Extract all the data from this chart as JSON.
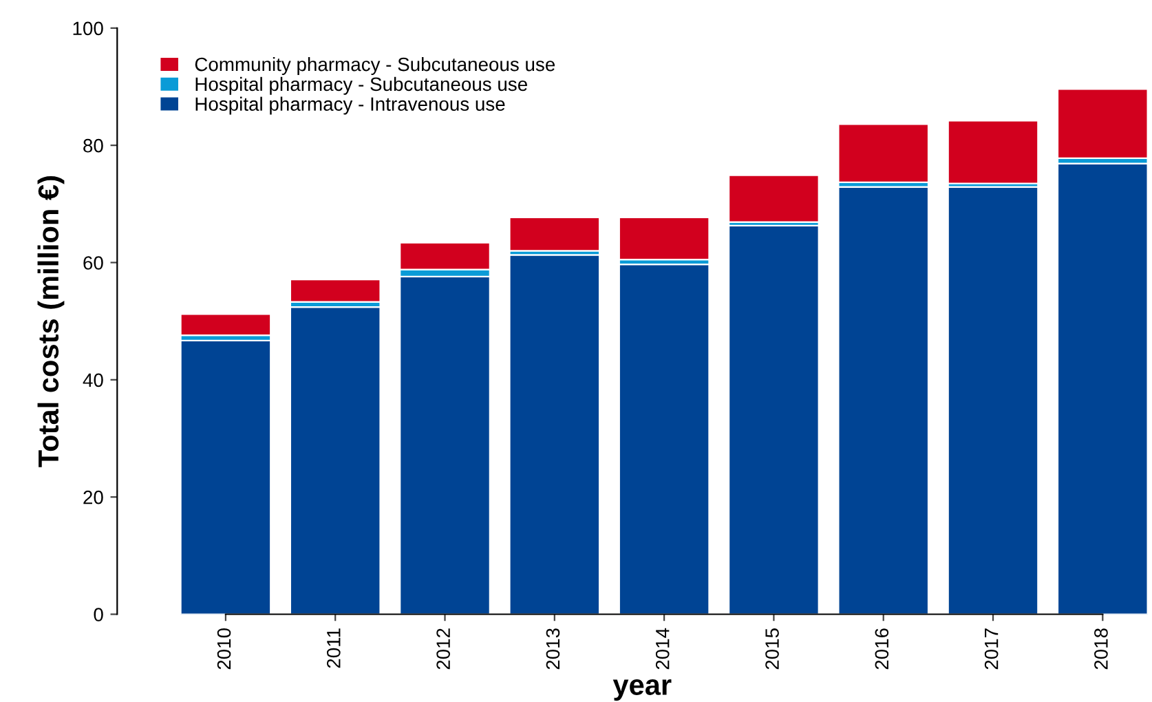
{
  "chart_data": {
    "type": "bar",
    "stacked": true,
    "xlabel": "year",
    "ylabel": "Total costs (million €)",
    "categories": [
      "2010",
      "2011",
      "2012",
      "2013",
      "2014",
      "2015",
      "2016",
      "2017",
      "2018"
    ],
    "series": [
      {
        "name": "Hospital pharmacy - Intravenous use",
        "color": "#004494",
        "values": [
          46.7,
          52.4,
          57.6,
          61.3,
          59.7,
          66.3,
          72.9,
          72.9,
          76.9
        ]
      },
      {
        "name": "Hospital pharmacy - Subcutaneous use",
        "color": "#0a9bd7",
        "values": [
          0.9,
          0.9,
          1.2,
          0.7,
          0.8,
          0.6,
          0.8,
          0.6,
          0.9
        ]
      },
      {
        "name": "Community pharmacy - Subcutaneous use",
        "color": "#d2001e",
        "values": [
          3.6,
          3.8,
          4.6,
          5.7,
          7.2,
          8.0,
          9.9,
          10.7,
          11.8
        ]
      }
    ],
    "ylim": [
      0,
      100
    ],
    "yticks": [
      0,
      20,
      40,
      60,
      80,
      100
    ],
    "grid": false,
    "legend": "top left"
  }
}
